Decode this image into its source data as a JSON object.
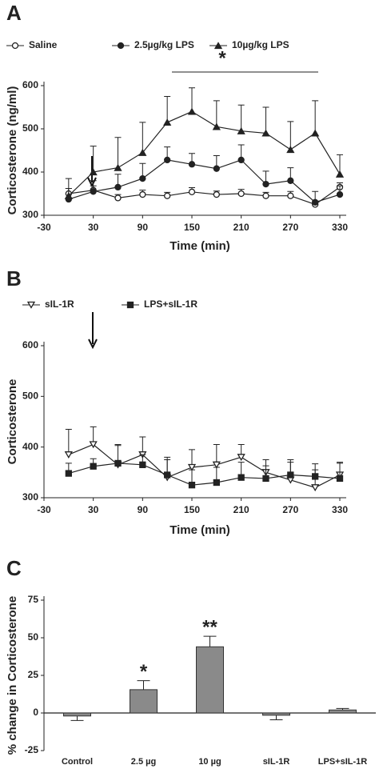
{
  "chart_data": [
    {
      "type": "line",
      "panel": "A",
      "xlabel": "Time (min)",
      "ylabel": "Corticosterone (ng/ml)",
      "annotation": "*",
      "x": [
        0,
        30,
        60,
        90,
        120,
        150,
        180,
        210,
        240,
        270,
        300,
        330
      ],
      "xlim": [
        -30,
        330
      ],
      "xticks": [
        -30,
        30,
        90,
        150,
        210,
        270,
        330
      ],
      "ylim": [
        300,
        600
      ],
      "yticks": [
        300,
        400,
        500,
        600
      ],
      "series": [
        {
          "name": "Saline",
          "color": "#222",
          "marker": "circle-open",
          "values": [
            350,
            358,
            340,
            348,
            345,
            354,
            348,
            350,
            345,
            345,
            325,
            365
          ],
          "errors": [
            12,
            10,
            8,
            10,
            8,
            10,
            8,
            10,
            8,
            10,
            8,
            10
          ]
        },
        {
          "name": "2.5µg/kg LPS",
          "color": "#222",
          "marker": "circle",
          "values": [
            337,
            355,
            365,
            385,
            428,
            418,
            408,
            428,
            372,
            380,
            330,
            348
          ],
          "errors": [
            25,
            25,
            30,
            35,
            30,
            25,
            30,
            35,
            30,
            30,
            25,
            20
          ]
        },
        {
          "name": "10µg/kg LPS",
          "color": "#222",
          "marker": "triangle",
          "values": [
            345,
            400,
            410,
            445,
            515,
            540,
            505,
            495,
            490,
            452,
            490,
            395
          ],
          "errors": [
            40,
            60,
            70,
            70,
            60,
            55,
            60,
            60,
            60,
            65,
            75,
            45
          ]
        }
      ]
    },
    {
      "type": "line",
      "panel": "B",
      "xlabel": "Time (min)",
      "ylabel": "Corticosterone",
      "annotation": null,
      "x": [
        0,
        30,
        60,
        90,
        120,
        150,
        180,
        210,
        240,
        270,
        300,
        330
      ],
      "xlim": [
        -30,
        330
      ],
      "xticks": [
        -30,
        30,
        90,
        150,
        210,
        270,
        330
      ],
      "ylim": [
        300,
        600
      ],
      "yticks": [
        300,
        400,
        500,
        600
      ],
      "series": [
        {
          "name": "sIL-1R",
          "color": "#222",
          "marker": "triangle-down-open",
          "values": [
            385,
            405,
            365,
            385,
            340,
            360,
            365,
            380,
            350,
            335,
            320,
            345
          ],
          "errors": [
            50,
            35,
            40,
            35,
            40,
            35,
            40,
            25,
            25,
            35,
            35,
            25
          ]
        },
        {
          "name": "LPS+sIL-1R",
          "color": "#222",
          "marker": "square",
          "values": [
            348,
            362,
            368,
            365,
            345,
            325,
            330,
            340,
            338,
            345,
            342,
            338
          ],
          "errors": [
            20,
            15,
            35,
            20,
            30,
            30,
            30,
            30,
            25,
            30,
            25,
            30
          ]
        }
      ]
    },
    {
      "type": "bar",
      "panel": "C",
      "ylabel": "% change in Corticosterone",
      "color": "#8a8a8a",
      "categories": [
        "Control",
        "2.5 µg",
        "10 µg",
        "sIL-1R",
        "LPS+sIL-1R"
      ],
      "values": [
        -2,
        15.5,
        44,
        -1.5,
        2
      ],
      "errors": [
        3,
        6,
        7,
        3,
        1
      ],
      "annotations": [
        null,
        "*",
        "**",
        null,
        null
      ],
      "ylim": [
        -25,
        75
      ],
      "yticks": [
        -25,
        0,
        25,
        50,
        75
      ]
    }
  ]
}
